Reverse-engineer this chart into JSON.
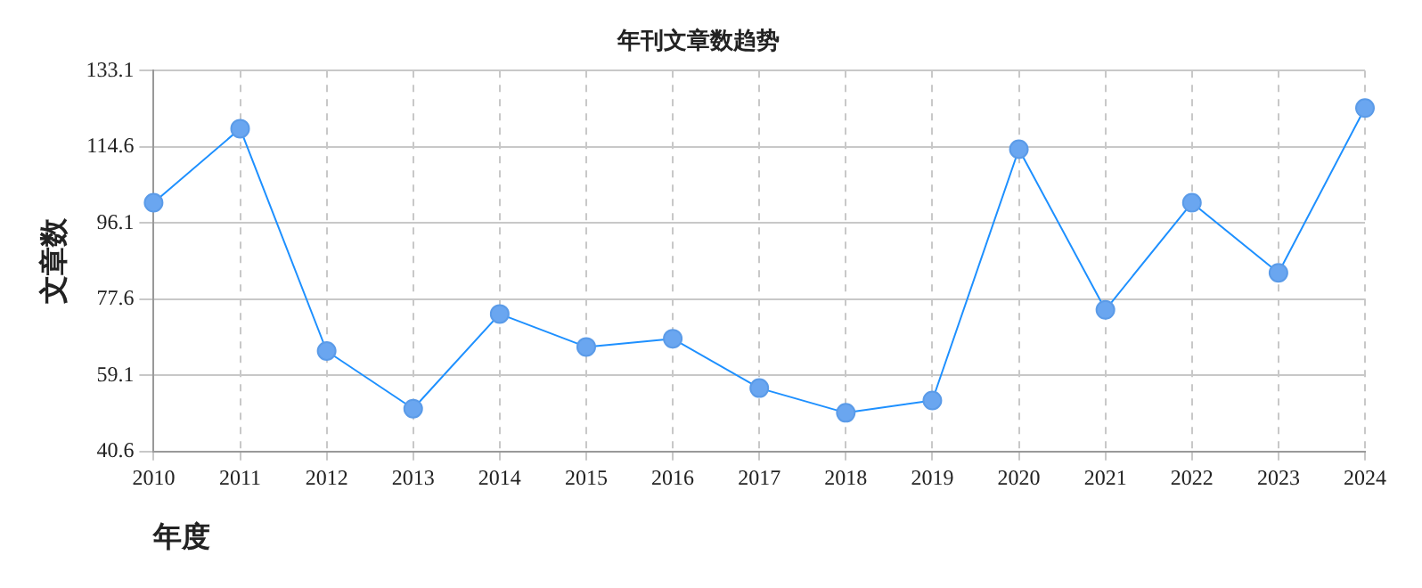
{
  "chart_data": {
    "type": "line",
    "title": "年刊文章数趋势",
    "xlabel": "年度",
    "ylabel": "文章数",
    "categories": [
      "2010",
      "2011",
      "2012",
      "2013",
      "2014",
      "2015",
      "2016",
      "2017",
      "2018",
      "2019",
      "2020",
      "2021",
      "2022",
      "2023",
      "2024"
    ],
    "series": [
      {
        "color": "#1e90ff",
        "values": [
          101,
          119,
          65,
          51,
          74,
          66,
          68,
          56,
          50,
          53,
          114,
          75,
          101,
          84,
          124
        ]
      }
    ],
    "ylim": [
      40.6,
      133.1
    ],
    "yticks": [
      40.6,
      59.1,
      77.6,
      96.1,
      114.6,
      133.1
    ],
    "grid": true,
    "marker": "circle",
    "line_style": "solid",
    "legend": false
  }
}
